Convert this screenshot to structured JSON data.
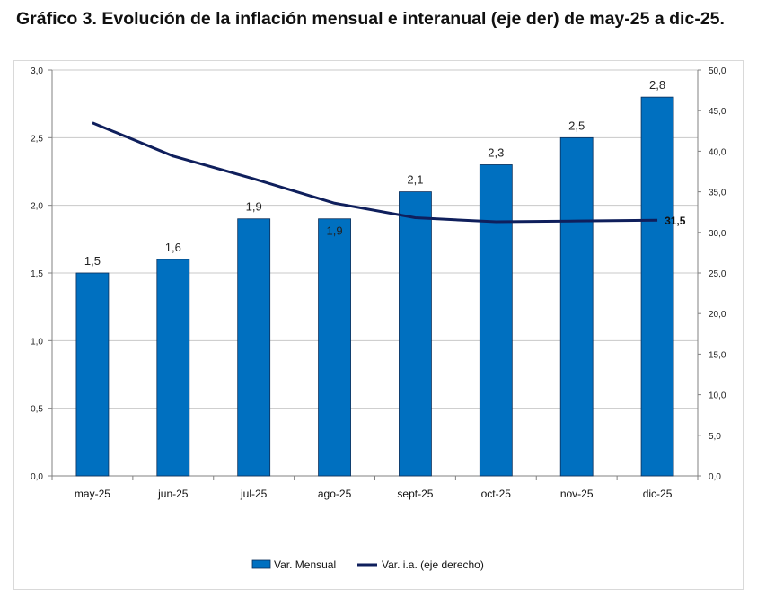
{
  "title": "Gráfico 3. Evolución de la inflación mensual e interanual (eje der) de may-25 a dic-25.",
  "chart_data": {
    "type": "bar",
    "categories": [
      "may-25",
      "jun-25",
      "jul-25",
      "ago-25",
      "sept-25",
      "oct-25",
      "nov-25",
      "dic-25"
    ],
    "series": [
      {
        "name": "Var. Mensual",
        "type": "bar",
        "axis": "left",
        "color": "#0070C0",
        "values": [
          1.5,
          1.6,
          1.9,
          1.9,
          2.1,
          2.3,
          2.5,
          2.8
        ],
        "data_labels": [
          "1,5",
          "1,6",
          "1,9",
          "1,9",
          "2,1",
          "2,3",
          "2,5",
          "2,8"
        ]
      },
      {
        "name": "Var. i.a. (eje derecho)",
        "type": "line",
        "axis": "right",
        "color": "#0F1F5C",
        "values": [
          43.5,
          39.4,
          36.6,
          33.6,
          31.8,
          31.3,
          31.4,
          31.5
        ],
        "data_labels": [
          "",
          "",
          "",
          "",
          "",
          "",
          "",
          "31,5"
        ]
      }
    ],
    "y_left": {
      "range": [
        0,
        3
      ],
      "ticks": [
        "0,0",
        "0,5",
        "1,0",
        "1,5",
        "2,0",
        "2,5",
        "3,0"
      ]
    },
    "y_right": {
      "range": [
        0,
        50
      ],
      "ticks": [
        "0,0",
        "5,0",
        "10,0",
        "15,0",
        "20,0",
        "25,0",
        "30,0",
        "35,0",
        "40,0",
        "45,0",
        "50,0"
      ]
    },
    "grid": true,
    "legend": "bottom",
    "xlabel": "",
    "ylabel": ""
  }
}
